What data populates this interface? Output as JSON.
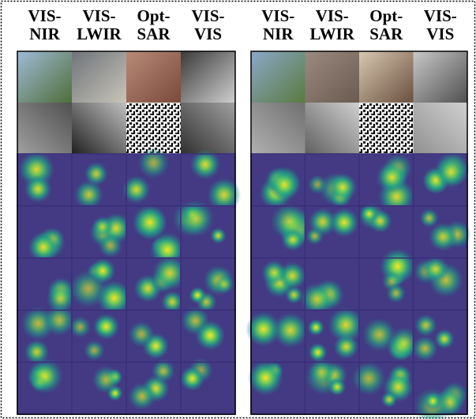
{
  "panels": [
    {
      "columns": [
        [
          "VIS-",
          "NIR"
        ],
        [
          "VIS-",
          "LWIR"
        ],
        [
          "Opt-",
          "SAR"
        ],
        [
          "VIS-",
          "VIS"
        ]
      ]
    },
    {
      "columns": [
        [
          "VIS-",
          "NIR"
        ],
        [
          "VIS-",
          "LWIR"
        ],
        [
          "Opt-",
          "SAR"
        ],
        [
          "VIS-",
          "VIS"
        ]
      ]
    }
  ]
}
